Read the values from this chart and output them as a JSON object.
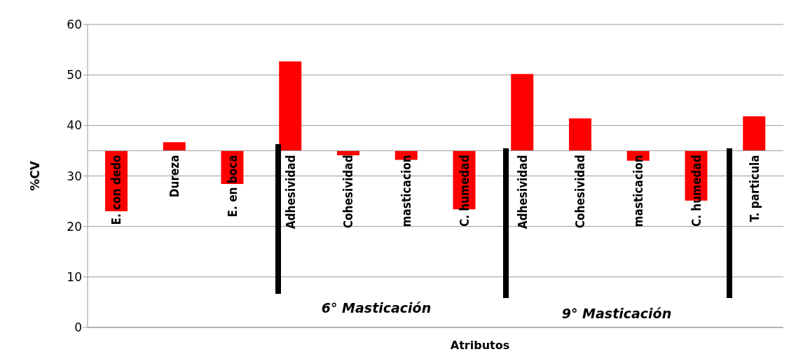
{
  "chart_data": {
    "type": "bar",
    "xlabel": "Atributos",
    "ylabel": "%CV",
    "categories": [
      "E. con dedo",
      "Dureza",
      "E. en boca",
      "Adhesividad",
      "Cohesividad",
      "masticacion",
      "C. humedad",
      "Adhesividad",
      "Cohesividad",
      "masticacion",
      "C. humedad",
      "T. particula"
    ],
    "base": [
      35,
      35,
      35,
      35,
      35,
      35,
      35,
      35,
      35,
      35,
      35,
      35
    ],
    "values": [
      -12,
      1.7,
      -6.6,
      17.7,
      -0.9,
      -1.8,
      -11.6,
      15.2,
      6.4,
      -2,
      -9.9,
      6.8
    ],
    "color": "#ff0000",
    "ylim": [
      0,
      60
    ],
    "yticks": [
      0,
      10,
      20,
      30,
      40,
      50,
      60
    ],
    "grid": "y",
    "annotations": [
      "6° Masticación",
      "9° Masticación"
    ]
  }
}
